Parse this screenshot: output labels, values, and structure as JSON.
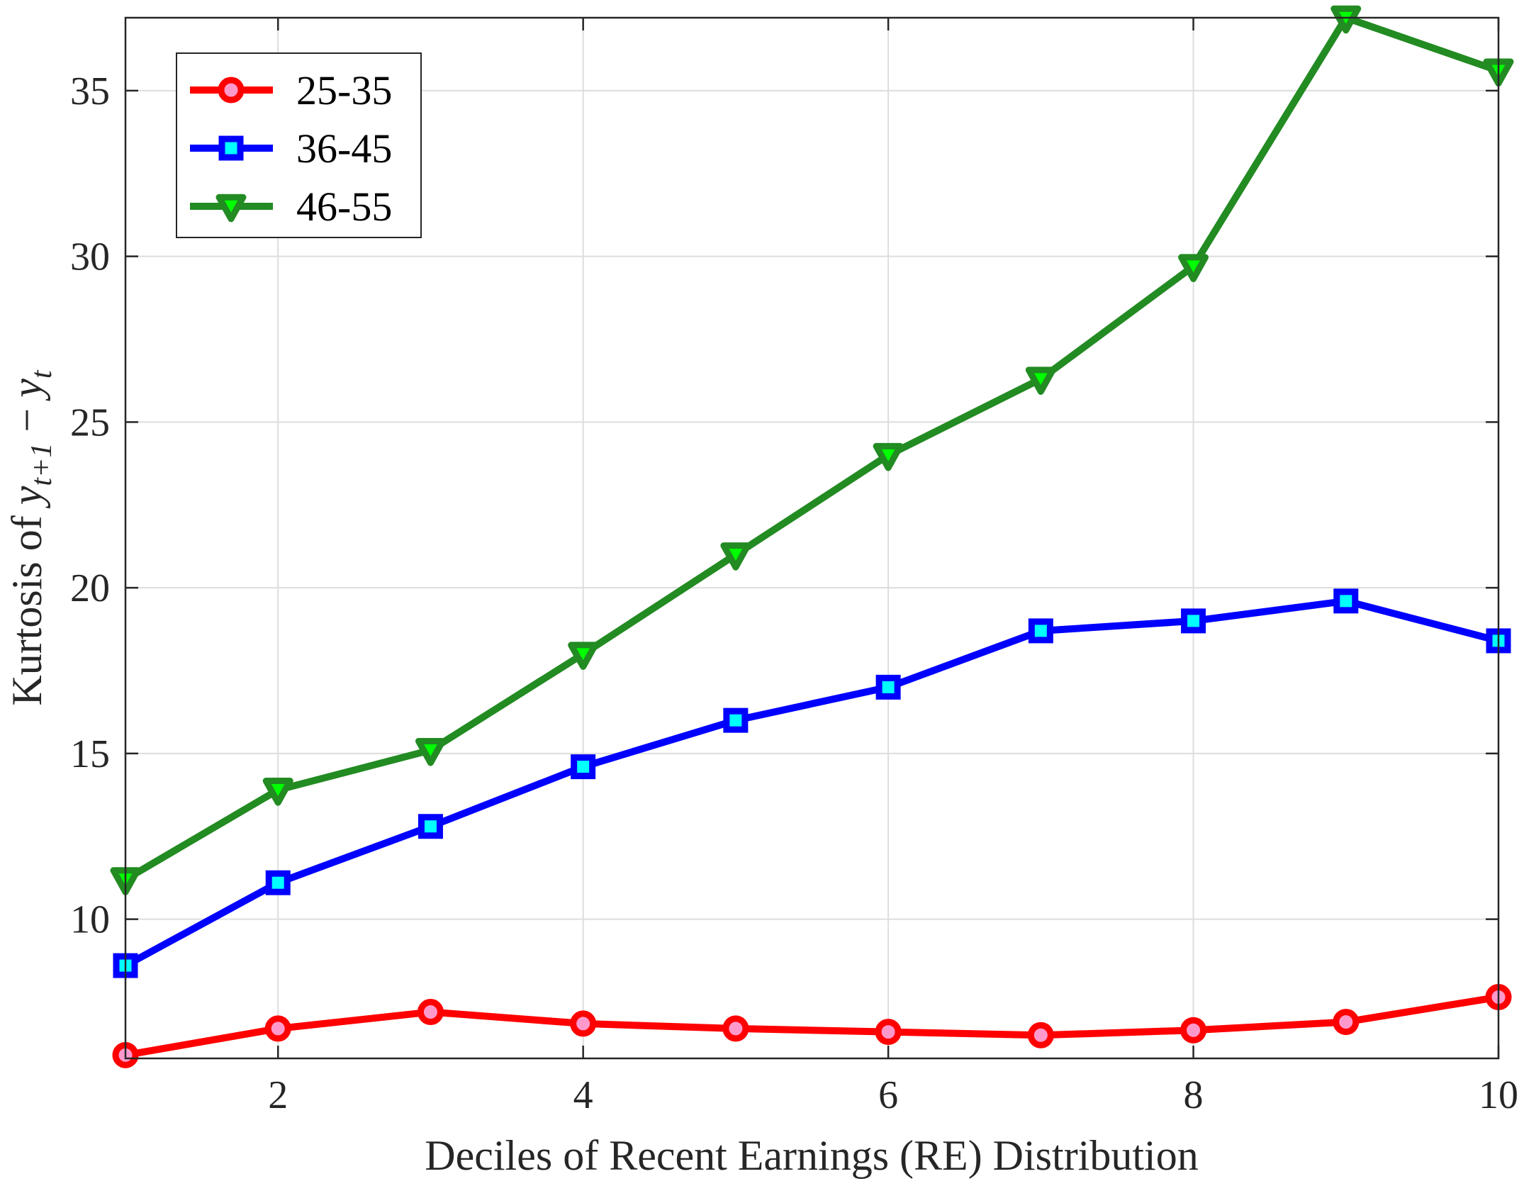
{
  "chart_data": {
    "type": "line",
    "title": "",
    "xlabel": "Deciles of Recent Earnings (RE) Distribution",
    "ylabel": {
      "prefix": "Kurtosis of ",
      "var1": "y",
      "sub1": "t+1",
      "op": " − ",
      "var2": "y",
      "sub2": "t"
    },
    "xlim": [
      1,
      10
    ],
    "ylim": [
      5.8,
      37.2
    ],
    "xticks": [
      2,
      4,
      6,
      8,
      10
    ],
    "yticks": [
      10,
      15,
      20,
      25,
      30,
      35
    ],
    "grid": true,
    "legend_position": "top-left",
    "x": [
      1,
      2,
      3,
      4,
      5,
      6,
      7,
      8,
      9,
      10
    ],
    "series": [
      {
        "name": "25-35",
        "marker": "circle",
        "color": "#ff0000",
        "fill": "#ff99cc",
        "values": [
          5.9,
          6.7,
          7.2,
          6.85,
          6.7,
          6.6,
          6.5,
          6.65,
          6.9,
          7.65
        ]
      },
      {
        "name": "36-45",
        "marker": "square",
        "color": "#0000ff",
        "fill": "#00ffff",
        "values": [
          8.6,
          11.1,
          12.8,
          14.6,
          16.0,
          17.0,
          18.7,
          19.0,
          19.6,
          18.4
        ]
      },
      {
        "name": "46-55",
        "marker": "triangle-down",
        "color": "#228b22",
        "fill": "#00ff00",
        "values": [
          11.2,
          13.9,
          15.1,
          18.0,
          21.0,
          24.0,
          26.3,
          29.7,
          37.2,
          35.6
        ]
      }
    ]
  }
}
